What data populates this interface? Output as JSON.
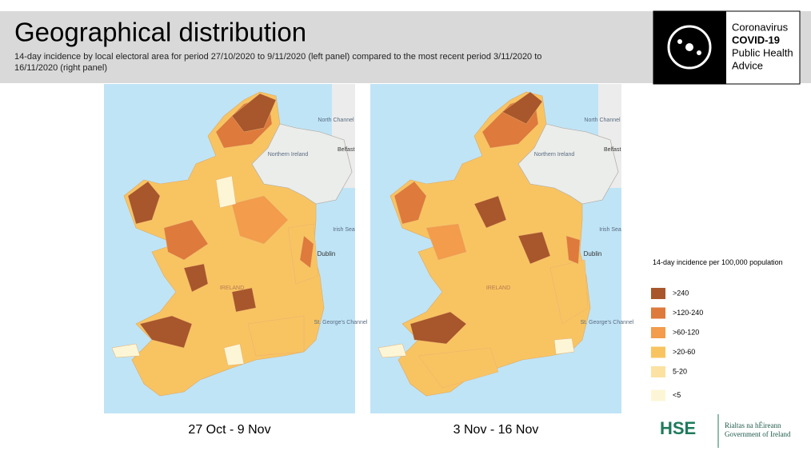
{
  "header": {
    "title": "Geographical distribution",
    "subtitle": "14-day incidence by local electoral area for period 27/10/2020 to 9/11/2020 (left panel) compared to the most recent period 3/11/2020 to 16/11/2020 (right panel)"
  },
  "logo": {
    "line1": "Coronavirus",
    "line2": "COVID-19",
    "line3": "Public Health",
    "line4": "Advice"
  },
  "panels": [
    {
      "caption": "27 Oct - 9 Nov"
    },
    {
      "caption": "3 Nov - 16 Nov"
    }
  ],
  "map_labels": {
    "north_channel": "North Channel",
    "northern_ireland": "Northern Ireland",
    "belfast": "Belfast",
    "irish_sea": "Irish Sea",
    "dublin": "Dublin",
    "st_georges": "St. George's Channel",
    "ireland": "IRELAND"
  },
  "legend": {
    "title": "14-day incidence per 100,000 population",
    "items": [
      {
        "label": ">240",
        "color": "#a8562b"
      },
      {
        "label": ">120-240",
        "color": "#dd7a3c"
      },
      {
        "label": ">60-120",
        "color": "#f29c4c"
      },
      {
        "label": ">20-60",
        "color": "#f8c462"
      },
      {
        "label": "5-20",
        "color": "#fbe2a2"
      },
      {
        "label": "<5",
        "color": "#fdf6d6"
      }
    ]
  },
  "footer": {
    "hse": "HSE",
    "gov1": "Rialtas na hÉireann",
    "gov2": "Government of Ireland"
  }
}
